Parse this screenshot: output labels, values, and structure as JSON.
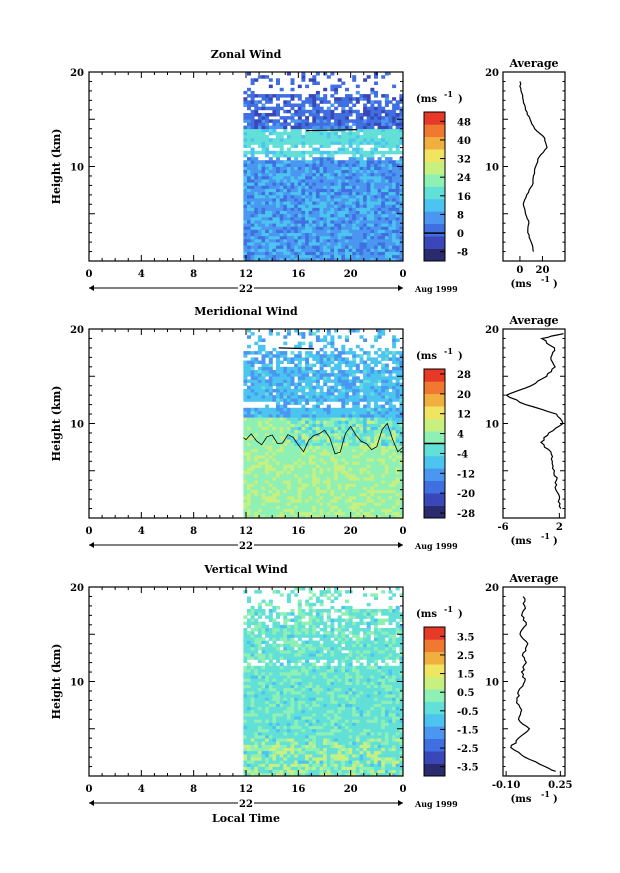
{
  "figure": {
    "xlabel": "Local Time",
    "date_label": "22",
    "date_suffix": "Aug 1999",
    "unit_label": "(ms",
    "unit_exp": "-1",
    "avg_title": "Average"
  },
  "colors": {
    "scale": [
      "#2a2a6e",
      "#3a47b8",
      "#3f6fe0",
      "#4a96f0",
      "#4cc4f0",
      "#62e0d8",
      "#8ff0b4",
      "#c8f080",
      "#f0e460",
      "#f0b040",
      "#f07830",
      "#e83828"
    ]
  },
  "chart_data": [
    {
      "type": "heatmap",
      "title": "Zonal Wind",
      "ylabel": "Height (km)",
      "xlim": [
        0,
        24
      ],
      "ylim": [
        0,
        20
      ],
      "x_ticks": [
        "0",
        "4",
        "8",
        "12",
        "16",
        "20",
        "0"
      ],
      "y_ticks": [
        "10",
        "20"
      ],
      "data_start_hour": 11.8,
      "colorbar_ticks": [
        "48",
        "40",
        "32",
        "24",
        "16",
        "8",
        "0",
        "-8"
      ],
      "colorbar_range": [
        -12,
        52
      ],
      "zero_contour": 0,
      "profile": {
        "xlim": [
          -15,
          40
        ],
        "x_ticks": [
          "0",
          "20"
        ],
        "heights": [
          1,
          2,
          3,
          4,
          5,
          6,
          7,
          8,
          9,
          10,
          11,
          12,
          13,
          14,
          15,
          16,
          17,
          18,
          19
        ],
        "values": [
          12,
          10,
          7,
          8,
          5,
          3,
          6,
          11,
          12,
          14,
          17,
          24,
          22,
          13,
          9,
          5,
          3,
          1,
          0
        ]
      }
    },
    {
      "type": "heatmap",
      "title": "Meridional Wind",
      "ylabel": "Height (km)",
      "xlim": [
        0,
        24
      ],
      "ylim": [
        0,
        20
      ],
      "x_ticks": [
        "0",
        "4",
        "8",
        "12",
        "16",
        "20",
        "0"
      ],
      "y_ticks": [
        "10",
        "20"
      ],
      "data_start_hour": 11.8,
      "colorbar_ticks": [
        "28",
        "20",
        "12",
        "4",
        "-4",
        "-12",
        "-20",
        "-28"
      ],
      "colorbar_range": [
        -30,
        30
      ],
      "zero_contour": 0,
      "profile": {
        "xlim": [
          -6,
          2.8
        ],
        "x_ticks": [
          "-6",
          "2"
        ],
        "heights": [
          1,
          2,
          3,
          4,
          5,
          6,
          7,
          8,
          9,
          10,
          11,
          12,
          13,
          14,
          15,
          16,
          17,
          18,
          19,
          19.5
        ],
        "values": [
          2.2,
          2.0,
          1.5,
          1.6,
          1.3,
          1.0,
          0.8,
          -0.6,
          0.5,
          2.5,
          1.6,
          -2.8,
          -5.5,
          -2.0,
          0.2,
          1.4,
          0.8,
          1.3,
          -0.5,
          2.6
        ]
      }
    },
    {
      "type": "heatmap",
      "title": "Vertical Wind",
      "ylabel": "Height (km)",
      "xlim": [
        0,
        24
      ],
      "ylim": [
        0,
        20
      ],
      "x_ticks": [
        "0",
        "4",
        "8",
        "12",
        "16",
        "20",
        "0"
      ],
      "y_ticks": [
        "10",
        "20"
      ],
      "data_start_hour": 11.8,
      "colorbar_ticks": [
        "3.5",
        "2.5",
        "1.5",
        "0.5",
        "-0.5",
        "-1.5",
        "-2.5",
        "-3.5"
      ],
      "colorbar_range": [
        -4,
        4
      ],
      "zero_contour": null,
      "profile": {
        "xlim": [
          -0.12,
          0.28
        ],
        "x_ticks": [
          "-0.10",
          "0.25"
        ],
        "heights": [
          0.5,
          1,
          2,
          3,
          4,
          5,
          6,
          7,
          8,
          9,
          10,
          11,
          12,
          13,
          14,
          15,
          16,
          17,
          18,
          19
        ],
        "values": [
          0.22,
          0.15,
          0.02,
          -0.07,
          -0.02,
          0.05,
          -0.02,
          0.0,
          -0.03,
          -0.02,
          0.02,
          0.0,
          0.03,
          0.01,
          0.04,
          -0.01,
          0.03,
          0.0,
          0.02,
          0.01
        ]
      }
    }
  ]
}
